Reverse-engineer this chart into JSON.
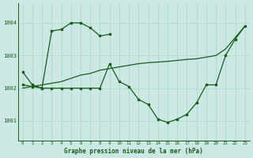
{
  "bg_color": "#cce8e4",
  "grid_color": "#aad4ce",
  "line_color": "#1a5c1a",
  "title": "Graphe pression niveau de la mer (hPa)",
  "yticks": [
    1001,
    1002,
    1003,
    1004
  ],
  "ylim": [
    1000.4,
    1004.6
  ],
  "xlim": [
    -0.5,
    23.5
  ],
  "series1_x": [
    0,
    1,
    2,
    3,
    4,
    5,
    6,
    7,
    8,
    9
  ],
  "series1_y": [
    1002.5,
    1002.1,
    1002.0,
    1003.75,
    1003.8,
    1004.0,
    1004.0,
    1003.85,
    1003.6,
    1003.65
  ],
  "series2_x": [
    0,
    1,
    2,
    3,
    4,
    5,
    6,
    7,
    8,
    9,
    10,
    11,
    12,
    13,
    14,
    15,
    16,
    17,
    18,
    19,
    20,
    21,
    22,
    23
  ],
  "series2_y": [
    1002.0,
    1002.05,
    1002.1,
    1002.15,
    1002.2,
    1002.3,
    1002.4,
    1002.45,
    1002.55,
    1002.6,
    1002.65,
    1002.7,
    1002.75,
    1002.78,
    1002.8,
    1002.82,
    1002.85,
    1002.88,
    1002.9,
    1002.95,
    1003.0,
    1003.2,
    1003.55,
    1003.9
  ],
  "series3_x": [
    0,
    1,
    2,
    3,
    4,
    5,
    6,
    7,
    8,
    9,
    10,
    11,
    12,
    13,
    14,
    15,
    16,
    17,
    18,
    19,
    20,
    21,
    22,
    23
  ],
  "series3_y": [
    1002.1,
    1002.05,
    1002.0,
    1002.0,
    1002.0,
    1002.0,
    1002.0,
    1002.0,
    1002.0,
    1002.75,
    1002.2,
    1002.05,
    1001.65,
    1001.5,
    1001.05,
    1000.95,
    1001.05,
    1001.2,
    1001.55,
    1002.1,
    1002.1,
    1003.0,
    1003.5,
    1003.9
  ],
  "series3_marker_x": [
    0,
    1,
    2,
    3,
    4,
    5,
    6,
    7,
    8,
    9,
    10,
    11,
    12,
    13,
    14,
    15,
    16,
    17,
    18,
    19,
    20,
    21,
    22,
    23
  ],
  "xlabel_ticks": [
    0,
    1,
    2,
    3,
    4,
    5,
    6,
    7,
    8,
    9,
    10,
    11,
    12,
    13,
    14,
    15,
    16,
    17,
    18,
    19,
    20,
    21,
    22,
    23
  ]
}
